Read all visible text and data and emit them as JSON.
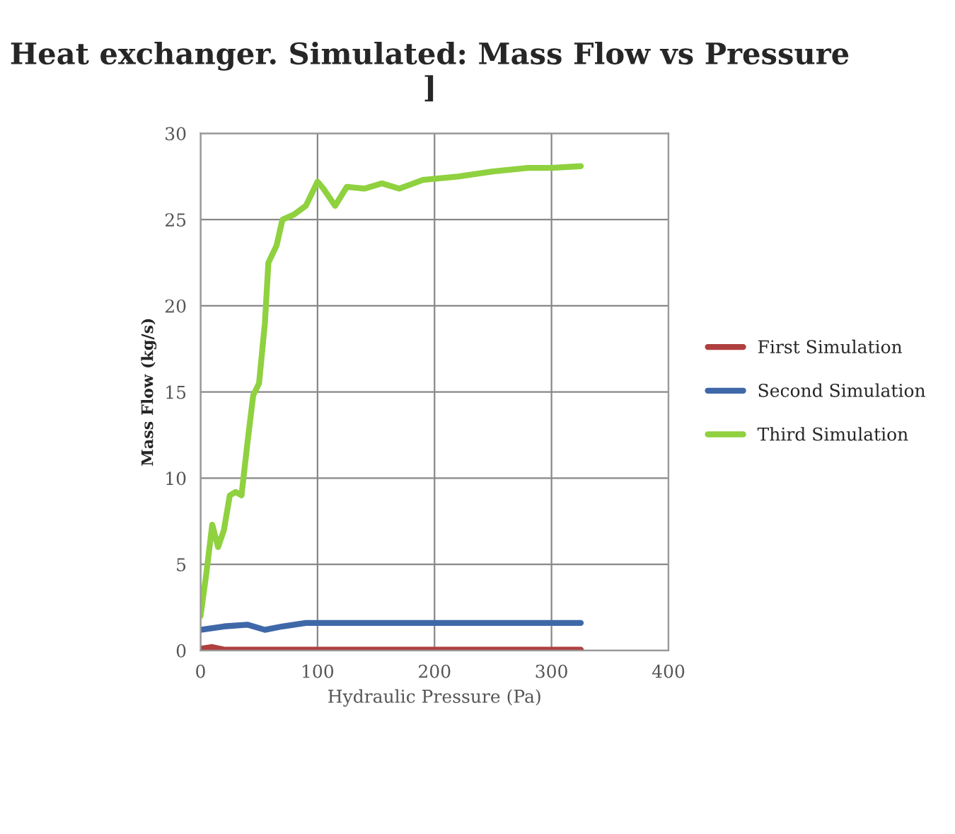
{
  "chart_data": {
    "type": "line",
    "title": "Heat exchanger. Simulated: Mass Flow vs Pressure ]",
    "xlabel": "Hydraulic Pressure (Pa)",
    "ylabel": "Mass Flow (kg/s)",
    "xlim": [
      0,
      400
    ],
    "xticks": [
      0,
      100,
      200,
      300,
      400
    ],
    "ylim": [
      0,
      30
    ],
    "yticks": [
      0,
      5,
      10,
      15,
      20,
      25,
      30
    ],
    "grid": true,
    "legend": "right",
    "marker": "none",
    "line_style": "solid",
    "series": [
      {
        "name": "First Simulation",
        "color": "#b04040",
        "x": [
          0,
          10,
          20,
          325
        ],
        "values": [
          0.1,
          0.2,
          0.05,
          0.05
        ]
      },
      {
        "name": "Second Simulation",
        "color": "#3f68a8",
        "x": [
          0,
          20,
          40,
          55,
          70,
          90,
          325
        ],
        "values": [
          1.2,
          1.4,
          1.5,
          1.2,
          1.4,
          1.6,
          1.6
        ]
      },
      {
        "name": "Third Simulation",
        "color": "#8fd13f",
        "x": [
          0,
          5,
          10,
          15,
          20,
          25,
          30,
          35,
          40,
          45,
          50,
          55,
          58,
          65,
          70,
          80,
          90,
          100,
          105,
          115,
          125,
          140,
          155,
          170,
          190,
          220,
          250,
          280,
          300,
          325
        ],
        "values": [
          2.0,
          4.5,
          7.3,
          6.0,
          7.0,
          9.0,
          9.2,
          9.0,
          12,
          14.8,
          15.5,
          19,
          22.5,
          23.5,
          25,
          25.3,
          25.8,
          27.2,
          26.8,
          25.8,
          26.9,
          26.8,
          27.1,
          26.8,
          27.3,
          27.5,
          27.8,
          28.0,
          28.0,
          28.1
        ]
      }
    ]
  }
}
